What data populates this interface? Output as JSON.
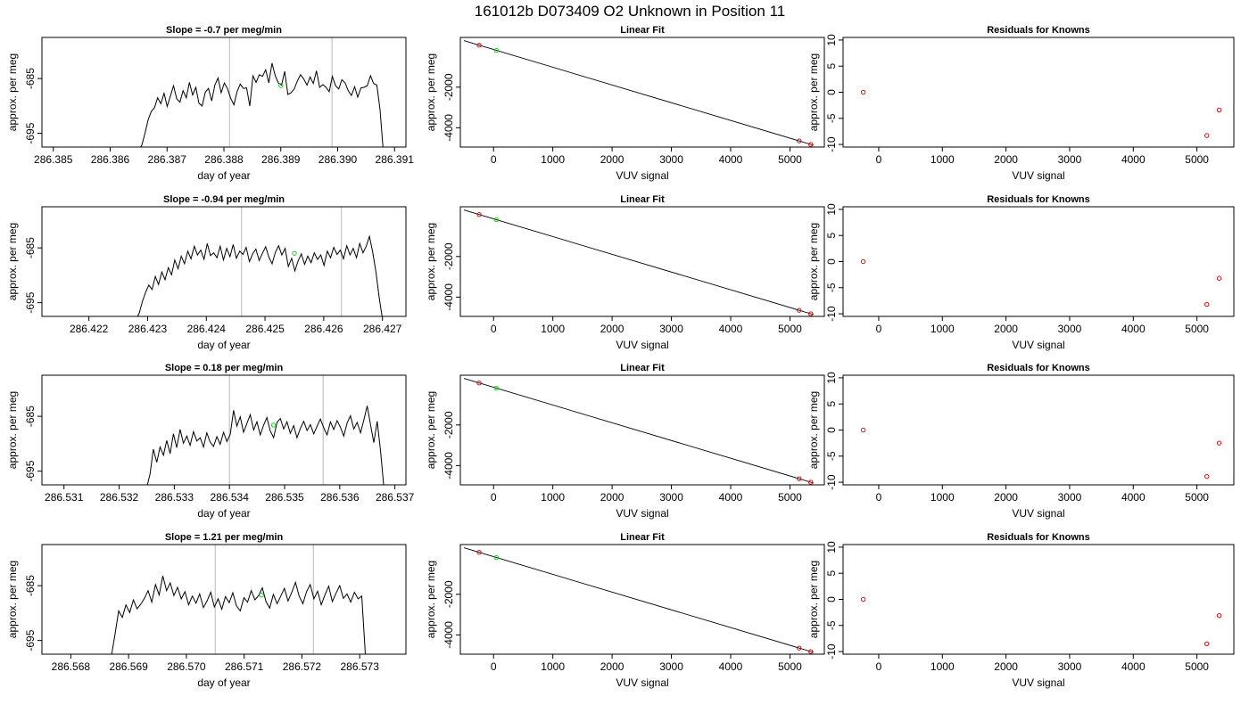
{
  "title": "161012b      D073409   O2 Unknown in Position  11",
  "rows": [
    {
      "time": {
        "title": "Slope =  -0.7  per meg/min",
        "xlabel": "day of year",
        "ylabel": "approx. per meg",
        "xlim": [
          286.3848,
          286.3912
        ],
        "ylim": [
          -697.5,
          -677.5
        ],
        "xticks": [
          286.385,
          286.386,
          286.387,
          286.388,
          286.389,
          286.39,
          286.391
        ],
        "xtick_labels": [
          "286.385",
          "286.386",
          "286.387",
          "286.388",
          "286.389",
          "286.390",
          "286.391"
        ],
        "yticks": [
          -695,
          -685
        ],
        "ytick_labels": [
          "-695",
          "-685"
        ],
        "vlines": [
          286.3881,
          286.3899
        ],
        "trace_x": [
          286.3865,
          286.3908
        ],
        "trace_y": [
          -698,
          -697.2,
          -695,
          -692.5,
          -691,
          -690.3,
          -688.5,
          -689.6,
          -687.7,
          -690.1,
          -688.2,
          -686.3,
          -688.7,
          -689.3,
          -687.2,
          -688.5,
          -685.7,
          -688.0,
          -686.6,
          -689.5,
          -690.0,
          -687.5,
          -686.8,
          -689.1,
          -686.2,
          -684.9,
          -687.6,
          -685.8,
          -686.9,
          -688.6,
          -689.8,
          -687.4,
          -686.0,
          -686.8,
          -686.7,
          -690.0,
          -684.5,
          -685.7,
          -684.3,
          -684.6,
          -683.4,
          -685.8,
          -682.2,
          -684.5,
          -685.8,
          -686.2,
          -683.7,
          -687.9,
          -687.6,
          -686.9,
          -685.4,
          -684.3,
          -685.1,
          -686.2,
          -684.7,
          -685.9,
          -683.6,
          -686.6,
          -686.1,
          -686.6,
          -687.4,
          -684.6,
          -686.3,
          -686.9,
          -685.2,
          -685.8,
          -687.2,
          -688.1,
          -686.5,
          -688.4,
          -686.7,
          -686.6,
          -686.3,
          -684.5,
          -685.9,
          -686.2,
          -690.5,
          -698
        ],
        "mean_point": [
          286.389,
          -686.3
        ]
      },
      "fit": {
        "title": "Linear Fit",
        "xlabel": "VUV signal",
        "ylabel": "approx. per meg",
        "xlim": [
          -560,
          5580
        ],
        "ylim": [
          -4950,
          450
        ],
        "xticks": [
          0,
          1000,
          2000,
          3000,
          4000,
          5000
        ],
        "xtick_labels": [
          "0",
          "1000",
          "2000",
          "3000",
          "4000",
          "5000"
        ],
        "yticks": [
          -4000,
          -2000
        ],
        "ytick_labels": [
          "-4000",
          "-2000"
        ],
        "line": [
          [
            -500,
            292
          ],
          [
            5400,
            -4862
          ]
        ],
        "knowns": [
          [
            -243,
            67
          ],
          [
            5155,
            -4649
          ],
          [
            5350,
            -4820
          ]
        ],
        "unknown": [
          [
            47,
            -188
          ]
        ]
      },
      "resid": {
        "title": "Residuals for Knowns",
        "xlabel": "VUV signal",
        "ylabel": "approx. per meg",
        "xlim": [
          -560,
          5580
        ],
        "ylim": [
          -10.5,
          10.5
        ],
        "xticks": [
          0,
          1000,
          2000,
          3000,
          4000,
          5000
        ],
        "xtick_labels": [
          "0",
          "1000",
          "2000",
          "3000",
          "4000",
          "5000"
        ],
        "yticks": [
          -10,
          -5,
          0,
          5,
          10
        ],
        "ytick_labels": [
          "-10",
          "-5",
          "0",
          "5",
          "10"
        ],
        "points": [
          [
            -243,
            0
          ],
          [
            5155,
            -8.3
          ],
          [
            5350,
            -3.4
          ]
        ]
      }
    },
    {
      "time": {
        "title": "Slope =  -0.94  per meg/min",
        "xlabel": "day of year",
        "ylabel": "approx. per meg",
        "xlim": [
          286.4212,
          286.4274
        ],
        "ylim": [
          -697.5,
          -677.5
        ],
        "xticks": [
          286.422,
          286.423,
          286.424,
          286.425,
          286.426,
          286.427
        ],
        "xtick_labels": [
          "286.422",
          "286.423",
          "286.424",
          "286.425",
          "286.426",
          "286.427"
        ],
        "yticks": [
          -695,
          -685
        ],
        "ytick_labels": [
          "-695",
          "-685"
        ],
        "vlines": [
          286.4246,
          286.4263
        ],
        "trace_x": [
          286.4228,
          286.427
        ],
        "trace_y": [
          -698,
          -697.0,
          -694.8,
          -693.1,
          -691.8,
          -692.6,
          -690.2,
          -691.7,
          -689.4,
          -690.8,
          -688.6,
          -689.9,
          -687.2,
          -688.8,
          -686.5,
          -687.9,
          -685.6,
          -687.0,
          -684.7,
          -686.3,
          -685.4,
          -687.1,
          -684.2,
          -686.4,
          -685.9,
          -686.8,
          -684.7,
          -687.2,
          -685.1,
          -686.6,
          -684.4,
          -686.9,
          -685.6,
          -686.2,
          -684.9,
          -687.5,
          -686.1,
          -685.2,
          -687.3,
          -686.0,
          -684.8,
          -686.7,
          -687.9,
          -685.8,
          -684.6,
          -686.3,
          -685.1,
          -688.4,
          -686.9,
          -689.2,
          -687.4,
          -686.1,
          -688.0,
          -686.5,
          -687.7,
          -685.9,
          -687.1,
          -686.3,
          -688.2,
          -685.6,
          -686.8,
          -684.9,
          -686.2,
          -685.4,
          -687.0,
          -684.6,
          -686.3,
          -685.1,
          -686.8,
          -684.2,
          -685.9,
          -684.7,
          -682.9,
          -685.8,
          -689.4,
          -694.0,
          -698
        ],
        "mean_point": [
          286.4255,
          -686.0
        ]
      },
      "fit": {
        "title": "Linear Fit",
        "xlabel": "VUV signal",
        "ylabel": "approx. per meg",
        "xlim": [
          -560,
          5580
        ],
        "ylim": [
          -4950,
          450
        ],
        "xticks": [
          0,
          1000,
          2000,
          3000,
          4000,
          5000
        ],
        "xtick_labels": [
          "0",
          "1000",
          "2000",
          "3000",
          "4000",
          "5000"
        ],
        "yticks": [
          -4000,
          -2000
        ],
        "ytick_labels": [
          "-4000",
          "-2000"
        ],
        "line": [
          [
            -500,
            292
          ],
          [
            5400,
            -4862
          ]
        ],
        "knowns": [
          [
            -243,
            67
          ],
          [
            5155,
            -4649
          ],
          [
            5350,
            -4820
          ]
        ],
        "unknown": [
          [
            47,
            -188
          ]
        ]
      },
      "resid": {
        "title": "Residuals for Knowns",
        "xlabel": "VUV signal",
        "ylabel": "approx. per meg",
        "xlim": [
          -560,
          5580
        ],
        "ylim": [
          -10.5,
          10.5
        ],
        "xticks": [
          0,
          1000,
          2000,
          3000,
          4000,
          5000
        ],
        "xtick_labels": [
          "0",
          "1000",
          "2000",
          "3000",
          "4000",
          "5000"
        ],
        "yticks": [
          -10,
          -5,
          0,
          5,
          10
        ],
        "ytick_labels": [
          "-10",
          "-5",
          "0",
          "5",
          "10"
        ],
        "points": [
          [
            -243,
            0
          ],
          [
            5155,
            -8.2
          ],
          [
            5350,
            -3.2
          ]
        ]
      }
    },
    {
      "time": {
        "title": "Slope =  0.18  per meg/min",
        "xlabel": "day of year",
        "ylabel": "approx. per meg",
        "xlim": [
          286.5306,
          286.5372
        ],
        "ylim": [
          -697.5,
          -677.5
        ],
        "xticks": [
          286.531,
          286.532,
          286.533,
          286.534,
          286.535,
          286.536,
          286.537
        ],
        "xtick_labels": [
          "286.531",
          "286.532",
          "286.533",
          "286.534",
          "286.535",
          "286.536",
          "286.537"
        ],
        "yticks": [
          -695,
          -685
        ],
        "ytick_labels": [
          "-695",
          "-685"
        ],
        "vlines": [
          286.534,
          286.5357
        ],
        "trace_x": [
          286.5325,
          286.5368
        ],
        "trace_y": [
          -698,
          -695.5,
          -691.0,
          -693.4,
          -690.6,
          -692.1,
          -689.4,
          -691.8,
          -688.2,
          -690.7,
          -687.4,
          -689.9,
          -688.6,
          -690.3,
          -687.8,
          -689.5,
          -688.9,
          -690.6,
          -688.0,
          -689.7,
          -690.5,
          -688.7,
          -690.1,
          -687.9,
          -689.6,
          -688.3,
          -683.9,
          -686.8,
          -685.1,
          -687.9,
          -686.3,
          -684.7,
          -687.5,
          -686.0,
          -688.4,
          -686.6,
          -685.2,
          -687.7,
          -688.9,
          -686.1,
          -685.4,
          -687.3,
          -686.0,
          -688.1,
          -686.7,
          -688.9,
          -687.2,
          -685.9,
          -687.6,
          -686.5,
          -688.2,
          -686.8,
          -685.5,
          -687.1,
          -688.4,
          -686.0,
          -687.4,
          -685.8,
          -687.0,
          -688.6,
          -686.2,
          -684.9,
          -687.3,
          -686.1,
          -688.0,
          -685.7,
          -683.1,
          -686.5,
          -689.8,
          -685.9,
          -691.2,
          -698
        ],
        "mean_point": [
          286.5348,
          -686.6
        ]
      },
      "fit": {
        "title": "Linear Fit",
        "xlabel": "VUV signal",
        "ylabel": "approx. per meg",
        "xlim": [
          -560,
          5580
        ],
        "ylim": [
          -4950,
          450
        ],
        "xticks": [
          0,
          1000,
          2000,
          3000,
          4000,
          5000
        ],
        "xtick_labels": [
          "0",
          "1000",
          "2000",
          "3000",
          "4000",
          "5000"
        ],
        "yticks": [
          -4000,
          -2000
        ],
        "ytick_labels": [
          "-4000",
          "-2000"
        ],
        "line": [
          [
            -500,
            292
          ],
          [
            5400,
            -4862
          ]
        ],
        "knowns": [
          [
            -243,
            67
          ],
          [
            5155,
            -4649
          ],
          [
            5350,
            -4820
          ]
        ],
        "unknown": [
          [
            47,
            -188
          ]
        ]
      },
      "resid": {
        "title": "Residuals for Knowns",
        "xlabel": "VUV signal",
        "ylabel": "approx. per meg",
        "xlim": [
          -560,
          5580
        ],
        "ylim": [
          -10.5,
          10.5
        ],
        "xticks": [
          0,
          1000,
          2000,
          3000,
          4000,
          5000
        ],
        "xtick_labels": [
          "0",
          "1000",
          "2000",
          "3000",
          "4000",
          "5000"
        ],
        "yticks": [
          -10,
          -5,
          0,
          5,
          10
        ],
        "ytick_labels": [
          "-10",
          "-5",
          "0",
          "5",
          "10"
        ],
        "points": [
          [
            -243,
            0
          ],
          [
            5155,
            -8.9
          ],
          [
            5350,
            -2.5
          ]
        ]
      }
    },
    {
      "time": {
        "title": "Slope =  1.21  per meg/min",
        "xlabel": "day of year",
        "ylabel": "approx. per meg",
        "xlim": [
          286.5675,
          286.5738
        ],
        "ylim": [
          -697.5,
          -677.5
        ],
        "xticks": [
          286.568,
          286.569,
          286.57,
          286.571,
          286.572,
          286.573
        ],
        "xtick_labels": [
          "286.568",
          "286.569",
          "286.570",
          "286.571",
          "286.572",
          "286.573"
        ],
        "yticks": [
          -695,
          -685
        ],
        "ytick_labels": [
          "-695",
          "-685"
        ],
        "vlines": [
          286.5705,
          286.5722
        ],
        "trace_x": [
          286.5687,
          286.5731
        ],
        "trace_y": [
          -698,
          -694.0,
          -689.6,
          -690.8,
          -688.5,
          -689.9,
          -687.6,
          -689.2,
          -688.4,
          -687.3,
          -685.9,
          -688.0,
          -684.8,
          -686.7,
          -683.2,
          -685.9,
          -684.5,
          -686.8,
          -685.3,
          -687.4,
          -686.1,
          -688.5,
          -686.9,
          -688.2,
          -686.5,
          -689.0,
          -687.8,
          -686.2,
          -688.9,
          -687.4,
          -689.3,
          -687.0,
          -688.1,
          -686.3,
          -688.7,
          -689.6,
          -687.2,
          -688.0,
          -685.9,
          -687.6,
          -686.8,
          -685.4,
          -687.9,
          -689.1,
          -686.6,
          -688.3,
          -686.9,
          -685.5,
          -687.8,
          -686.2,
          -684.4,
          -686.9,
          -688.3,
          -686.1,
          -684.8,
          -687.4,
          -686.0,
          -688.5,
          -686.7,
          -685.1,
          -687.9,
          -686.4,
          -685.0,
          -687.3,
          -686.5,
          -688.0,
          -686.2,
          -687.4,
          -686.9,
          -698
        ],
        "mean_point": [
          286.5713,
          -686.7
        ]
      },
      "fit": {
        "title": "Linear Fit",
        "xlabel": "VUV signal",
        "ylabel": "approx. per meg",
        "xlim": [
          -560,
          5580
        ],
        "ylim": [
          -4950,
          450
        ],
        "xticks": [
          0,
          1000,
          2000,
          3000,
          4000,
          5000
        ],
        "xtick_labels": [
          "0",
          "1000",
          "2000",
          "3000",
          "4000",
          "5000"
        ],
        "yticks": [
          -4000,
          -2000
        ],
        "ytick_labels": [
          "-4000",
          "-2000"
        ],
        "line": [
          [
            -500,
            292
          ],
          [
            5400,
            -4862
          ]
        ],
        "knowns": [
          [
            -243,
            67
          ],
          [
            5155,
            -4649
          ],
          [
            5350,
            -4820
          ]
        ],
        "unknown": [
          [
            47,
            -188
          ]
        ]
      },
      "resid": {
        "title": "Residuals for Knowns",
        "xlabel": "VUV signal",
        "ylabel": "approx. per meg",
        "xlim": [
          -560,
          5580
        ],
        "ylim": [
          -10.5,
          10.5
        ],
        "xticks": [
          0,
          1000,
          2000,
          3000,
          4000,
          5000
        ],
        "xtick_labels": [
          "0",
          "1000",
          "2000",
          "3000",
          "4000",
          "5000"
        ],
        "yticks": [
          -10,
          -5,
          0,
          5,
          10
        ],
        "ytick_labels": [
          "-10",
          "-5",
          "0",
          "5",
          "10"
        ],
        "points": [
          [
            -243,
            0
          ],
          [
            5155,
            -8.5
          ],
          [
            5350,
            -3.1
          ]
        ]
      }
    }
  ],
  "colors": {
    "trace": "#000000",
    "vline": "#c8c8c8",
    "known_point": "#d01010",
    "unknown_point": "#22cc22",
    "fit_line": "#000000",
    "frame": "#000000"
  },
  "chart_data": [
    {
      "type": "line",
      "title": "Slope =  -0.7  per meg/min",
      "xlabel": "day of year",
      "ylabel": "approx. per meg",
      "xlim": [
        286.3848,
        286.3912
      ],
      "ylim": [
        -697.5,
        -677.5
      ],
      "vertical_lines": [
        286.3881,
        286.3899
      ]
    },
    {
      "type": "scatter",
      "title": "Linear Fit",
      "xlabel": "VUV signal",
      "ylabel": "approx. per meg",
      "points": [
        [
          -243,
          67
        ],
        [
          47,
          -188
        ],
        [
          5155,
          -4649
        ],
        [
          5350,
          -4820
        ]
      ],
      "xlim": [
        -560,
        5580
      ],
      "ylim": [
        -4950,
        450
      ]
    },
    {
      "type": "scatter",
      "title": "Residuals for Knowns",
      "xlabel": "VUV signal",
      "ylabel": "approx. per meg",
      "points": [
        [
          -243,
          0
        ],
        [
          5155,
          -8.3
        ],
        [
          5350,
          -3.4
        ]
      ],
      "xlim": [
        -560,
        5580
      ],
      "ylim": [
        -10.5,
        10.5
      ]
    }
  ]
}
